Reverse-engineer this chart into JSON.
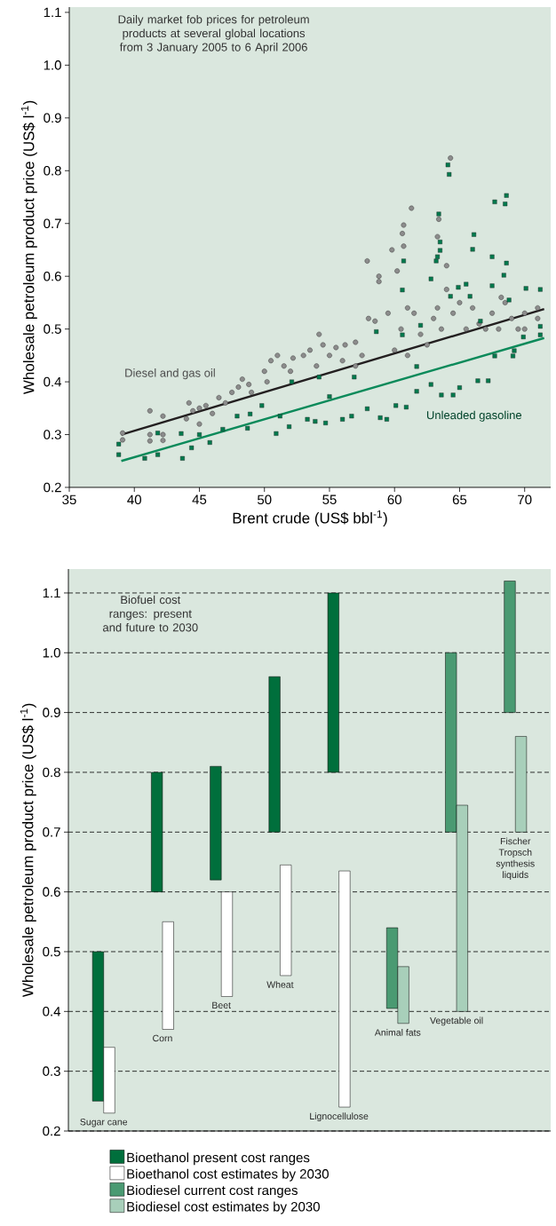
{
  "chart_data": [
    {
      "type": "scatter",
      "title": "Daily market fob prices for petroleum products at several global locations from 3 January 2005 to 6 April 2006",
      "xlabel": "Brent crude (US$ bbl$^{-1}$)",
      "ylabel": "Wholesale petroleum product price (US$ l$^{-1}$)",
      "xlim": [
        35,
        72
      ],
      "ylim": [
        0.2,
        1.11
      ],
      "xticks": [
        35,
        40,
        45,
        50,
        55,
        60,
        65,
        70
      ],
      "yticks": [
        0.2,
        0.3,
        0.4,
        0.5,
        0.6,
        0.7,
        0.8,
        0.9,
        {
          "value": 1.0,
          "label": "1.0"
        },
        1.1
      ],
      "series": [
        {
          "name": "Diesel and gas oil",
          "type": "scatter",
          "marker": "circle",
          "color": "#8c8c8c",
          "x": [
            39.1,
            39.1,
            41.2,
            41.2,
            41.2,
            42.2,
            42.2,
            42.2,
            44.0,
            44.2,
            44.5,
            45.0,
            45.0,
            45.5,
            46.0,
            46.5,
            47.0,
            47.5,
            48.0,
            48.3,
            48.8,
            49.0,
            50.0,
            50.2,
            50.5,
            51.0,
            51.5,
            52.0,
            52.2,
            53.0,
            53.5,
            54.0,
            54.2,
            54.5,
            55.0,
            55.5,
            56.0,
            56.2,
            57.0,
            57.0,
            57.5,
            57.9,
            58.0,
            58.5,
            58.8,
            58.8,
            59.5,
            59.8,
            60.0,
            60.2,
            60.5,
            60.6,
            60.7,
            60.7,
            61.0,
            61.0,
            61.3,
            61.5,
            62.0,
            62.5,
            63.0,
            63.3,
            63.3,
            63.4,
            63.6,
            64.0,
            64.0,
            64.3,
            64.5,
            65.0,
            65.5,
            66.0,
            66.5,
            67.0,
            67.5,
            68.0,
            68.2,
            68.5,
            69.0,
            69.5,
            70.0,
            70.0,
            71.0,
            71.0
          ],
          "values": [
            0.303,
            0.29,
            0.345,
            0.3,
            0.288,
            0.335,
            0.3,
            0.289,
            0.33,
            0.36,
            0.345,
            0.35,
            0.32,
            0.355,
            0.34,
            0.37,
            0.36,
            0.38,
            0.39,
            0.405,
            0.395,
            0.38,
            0.42,
            0.4,
            0.44,
            0.45,
            0.43,
            0.42,
            0.445,
            0.45,
            0.46,
            0.43,
            0.49,
            0.47,
            0.45,
            0.465,
            0.44,
            0.47,
            0.475,
            0.43,
            0.45,
            0.629,
            0.52,
            0.515,
            0.59,
            0.6,
            0.53,
            0.65,
            0.46,
            0.61,
            0.5,
            0.681,
            0.697,
            0.657,
            0.54,
            0.45,
            0.729,
            0.53,
            0.49,
            0.47,
            0.52,
            0.54,
            0.675,
            0.708,
            0.5,
            0.575,
            0.62,
            0.824,
            0.53,
            0.55,
            0.5,
            0.54,
            0.51,
            0.5,
            0.53,
            0.5,
            0.56,
            0.55,
            0.52,
            0.5,
            0.5,
            0.53,
            0.54,
            0.52
          ]
        },
        {
          "name": "Unleaded gasoline",
          "type": "scatter",
          "marker": "square",
          "color": "#007a4d",
          "x": [
            38.8,
            38.8,
            40.8,
            41.8,
            41.8,
            43.7,
            43.6,
            44.4,
            45.0,
            45.8,
            46.8,
            47.9,
            48.7,
            48.9,
            49.8,
            50.9,
            51.2,
            51.9,
            52.1,
            53.3,
            53.9,
            54.2,
            54.7,
            55.0,
            56.0,
            56.7,
            56.9,
            57.9,
            58.6,
            58.9,
            59.4,
            60.1,
            60.6,
            60.6,
            60.7,
            60.9,
            61.7,
            61.7,
            62.0,
            62.8,
            62.8,
            63.2,
            63.3,
            63.4,
            63.5,
            63.5,
            63.6,
            64.1,
            64.2,
            64.3,
            64.5,
            64.9,
            65.0,
            65.5,
            65.8,
            66.0,
            66.1,
            66.4,
            66.6,
            67.2,
            67.5,
            67.5,
            67.7,
            67.7,
            68.4,
            68.5,
            68.6,
            68.6,
            68.8,
            69.1,
            69.2,
            69.9,
            70.1,
            71.2,
            71.2,
            71.2
          ],
          "values": [
            0.262,
            0.282,
            0.255,
            0.262,
            0.303,
            0.255,
            0.302,
            0.275,
            0.3,
            0.285,
            0.31,
            0.335,
            0.312,
            0.339,
            0.355,
            0.302,
            0.335,
            0.315,
            0.4,
            0.329,
            0.325,
            0.409,
            0.322,
            0.372,
            0.329,
            0.335,
            0.409,
            0.349,
            0.495,
            0.332,
            0.329,
            0.355,
            0.574,
            0.489,
            0.629,
            0.352,
            0.382,
            0.429,
            0.507,
            0.595,
            0.395,
            0.629,
            0.637,
            0.718,
            0.665,
            0.649,
            0.375,
            0.811,
            0.793,
            0.562,
            0.375,
            0.579,
            0.389,
            0.585,
            0.562,
            0.651,
            0.679,
            0.402,
            0.515,
            0.402,
            0.582,
            0.637,
            0.741,
            0.449,
            0.602,
            0.737,
            0.753,
            0.625,
            0.555,
            0.449,
            0.459,
            0.485,
            0.577,
            0.575,
            0.489,
            0.505
          ]
        },
        {
          "type": "line",
          "marker": "none",
          "color": "#231f20",
          "x": [
            39.0,
            71.5
          ],
          "values": [
            0.3,
            0.538
          ]
        },
        {
          "type": "line",
          "marker": "none",
          "color": "#0b8a5a",
          "x": [
            39.0,
            71.5
          ],
          "values": [
            0.25,
            0.483
          ]
        }
      ]
    },
    {
      "type": "bar",
      "title": "Biofuel cost ranges: present and future to 2030",
      "ylabel": "Wholesale petroleum product price (US$ l$^{-1}$)",
      "categories": [
        "Sugar cane",
        "Corn",
        "Beet",
        "Wheat",
        "Lignocellulose",
        "Animal fats",
        "Vegetable oil",
        "Fischer Tropsch synthesis liquids"
      ],
      "ylim": [
        0.2,
        1.14
      ],
      "yticks": [
        0.2,
        0.3,
        0.4,
        0.5,
        0.6,
        0.7,
        0.8,
        0.9,
        {
          "value": 1.0,
          "label": "1.0"
        },
        1.1
      ],
      "grid": "y",
      "legend": "bottom",
      "series": [
        {
          "name": "Bioethanol present cost ranges",
          "color": "#006f3c",
          "base": [
            0.25,
            0.6,
            0.62,
            0.7,
            0.8,
            null,
            null,
            null
          ],
          "values": [
            0.25,
            0.2,
            0.19,
            0.26,
            0.3,
            null,
            null,
            null
          ]
        },
        {
          "name": "Bioethanol cost estimates by 2030",
          "color": "#ffffff",
          "base": [
            0.23,
            0.37,
            0.425,
            0.46,
            0.24,
            null,
            null,
            null
          ],
          "values": [
            0.11,
            0.18,
            0.175,
            0.185,
            0.395,
            null,
            null,
            null
          ]
        },
        {
          "name": "Biodiesel current cost ranges",
          "color": "#4a9a72",
          "base": [
            null,
            null,
            null,
            null,
            null,
            0.405,
            0.7,
            0.9
          ],
          "values": [
            null,
            null,
            null,
            null,
            null,
            0.135,
            0.3,
            0.22
          ]
        },
        {
          "name": "Biodiesel cost estimates by 2030",
          "color": "#a8cfba",
          "base": [
            null,
            null,
            null,
            null,
            null,
            0.38,
            0.4,
            0.7
          ],
          "values": [
            null,
            null,
            null,
            null,
            null,
            0.095,
            0.345,
            0.16
          ]
        }
      ]
    }
  ]
}
